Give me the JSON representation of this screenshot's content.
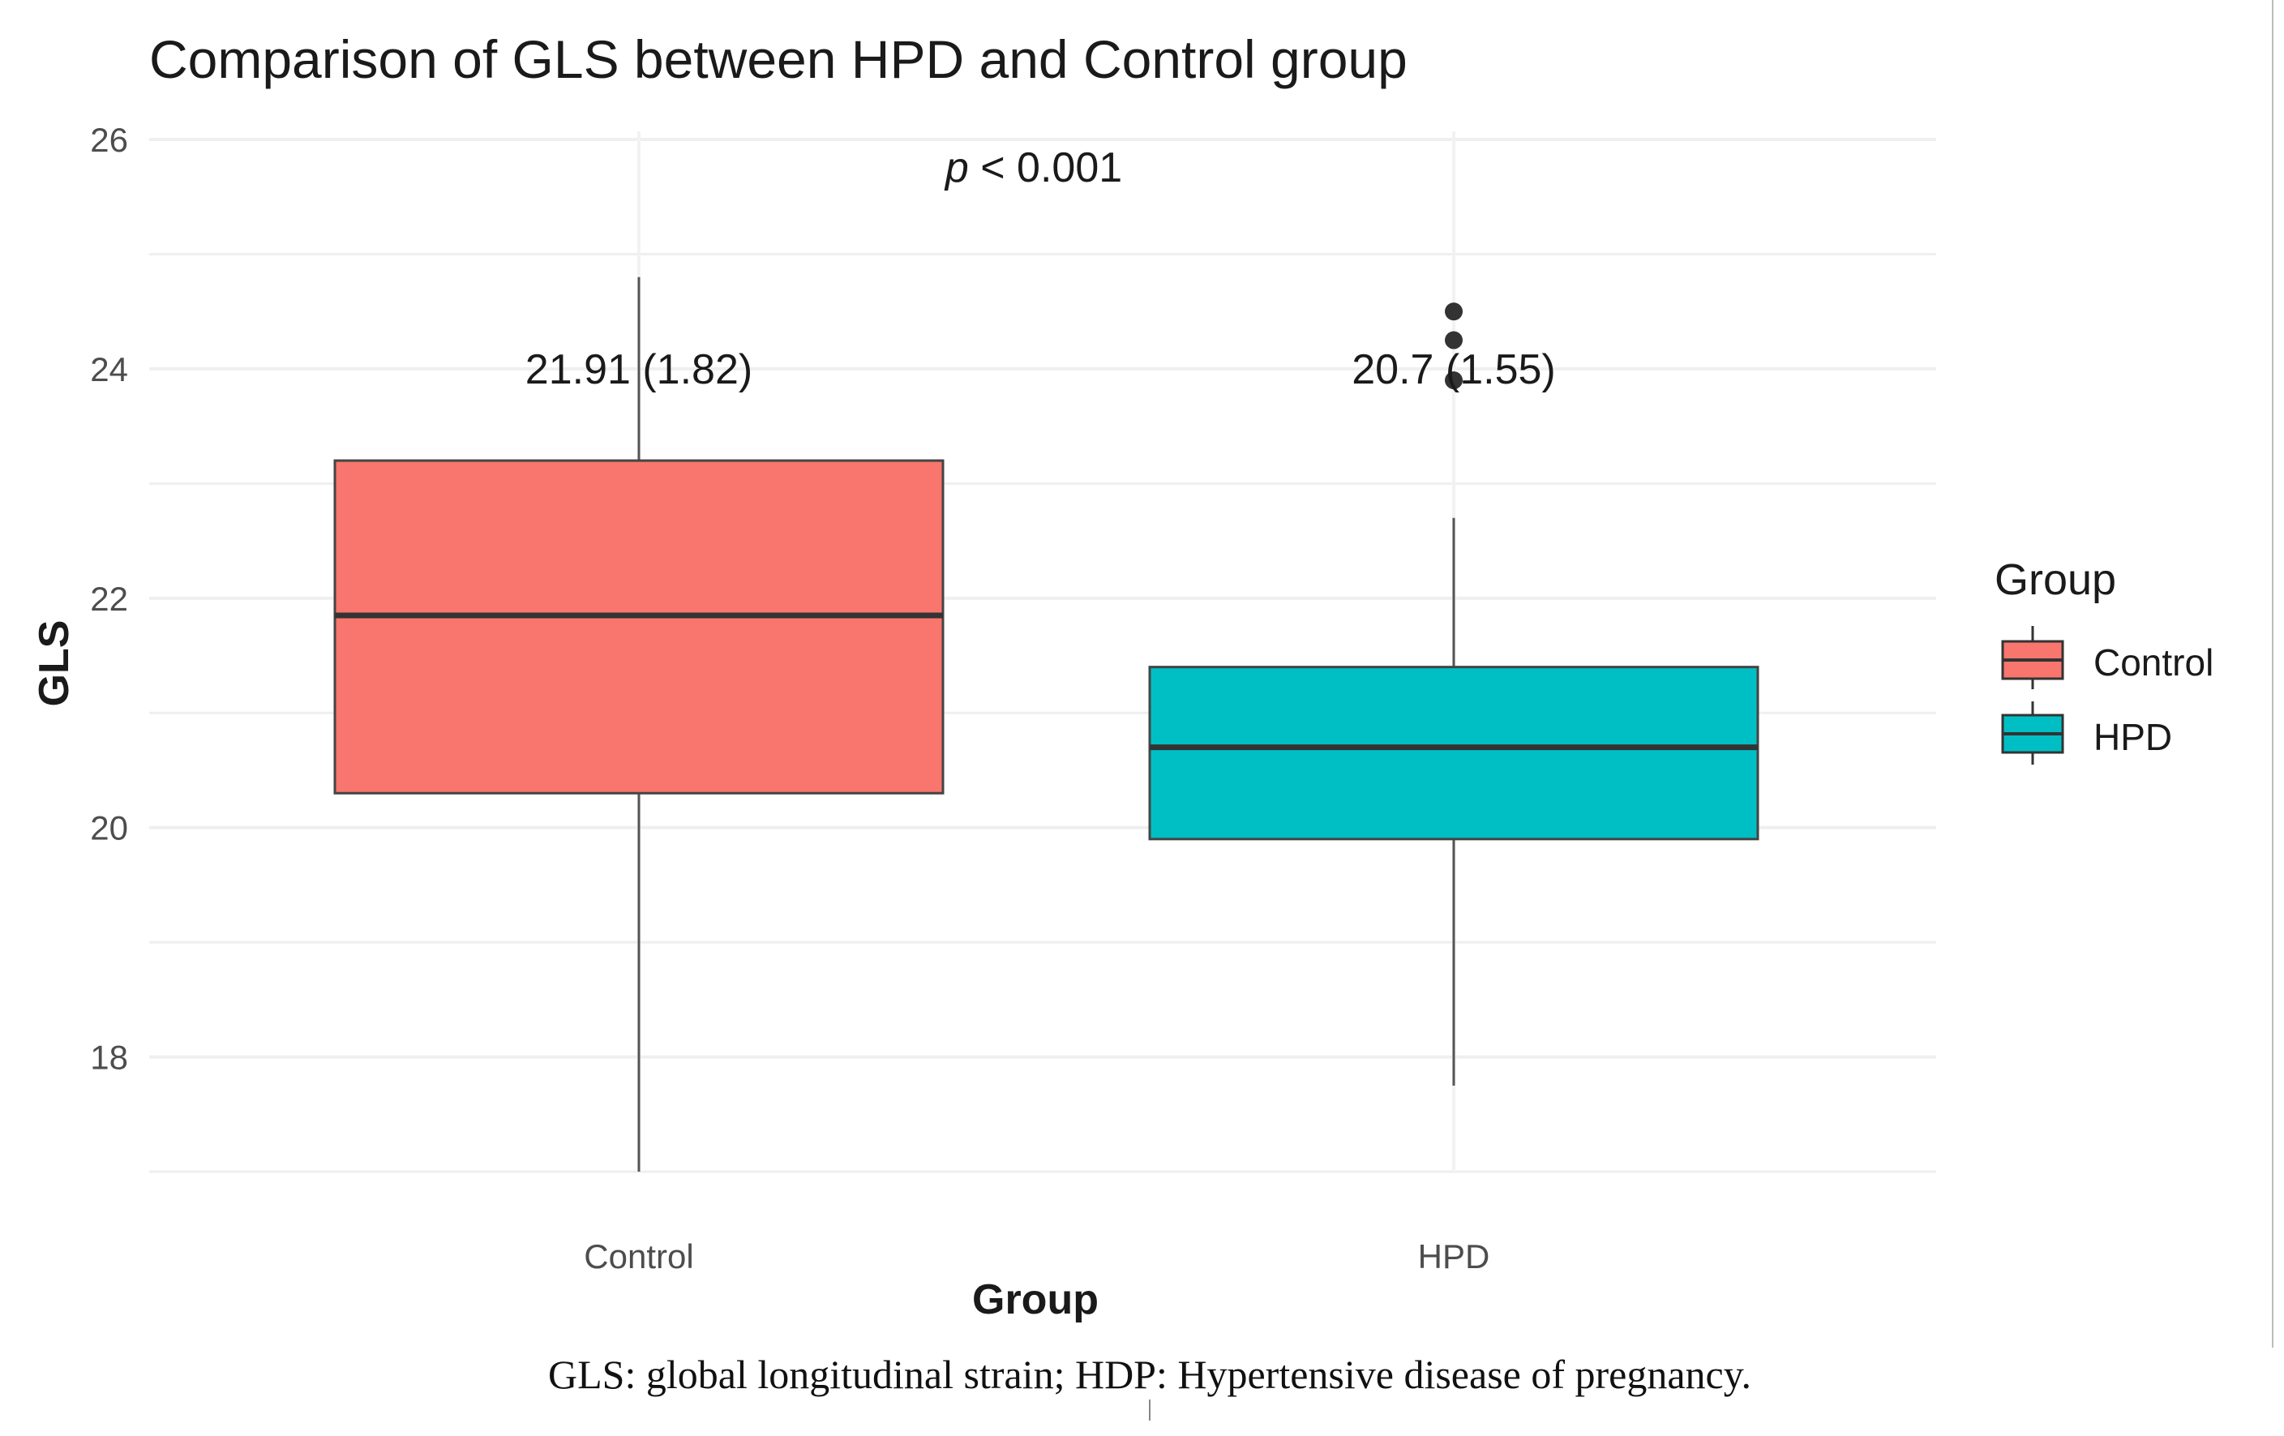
{
  "chart_data": {
    "type": "box",
    "title": "Comparison of GLS between HPD and Control group",
    "xlabel": "Group",
    "ylabel": "GLS",
    "ylim": [
      17.0,
      26.0
    ],
    "yticks": [
      18,
      20,
      22,
      24,
      26
    ],
    "categories": [
      "Control",
      "HPD"
    ],
    "colors": {
      "Control": "#f8766d",
      "HPD": "#00bfc4",
      "outline": "#333333",
      "grid": "#ebebeb"
    },
    "boxes": [
      {
        "category": "Control",
        "whisker_low": 17.0,
        "q1": 20.3,
        "median": 21.85,
        "q3": 23.2,
        "whisker_high": 24.8,
        "outliers": [],
        "label": "21.91 (1.82)"
      },
      {
        "category": "HPD",
        "whisker_low": 17.75,
        "q1": 19.9,
        "median": 20.7,
        "q3": 21.4,
        "whisker_high": 22.7,
        "outliers": [
          23.9,
          24.25,
          24.5
        ],
        "label": "20.7 (1.55)"
      }
    ],
    "annotation": {
      "p_symbol": "p",
      "p_rest": " < 0.001"
    },
    "legend": {
      "title": "Group",
      "entries": [
        "Control",
        "HPD"
      ],
      "position": "right"
    },
    "grid": true
  },
  "caption": "GLS: global longitudinal strain; HDP: Hypertensive disease of pregnancy."
}
